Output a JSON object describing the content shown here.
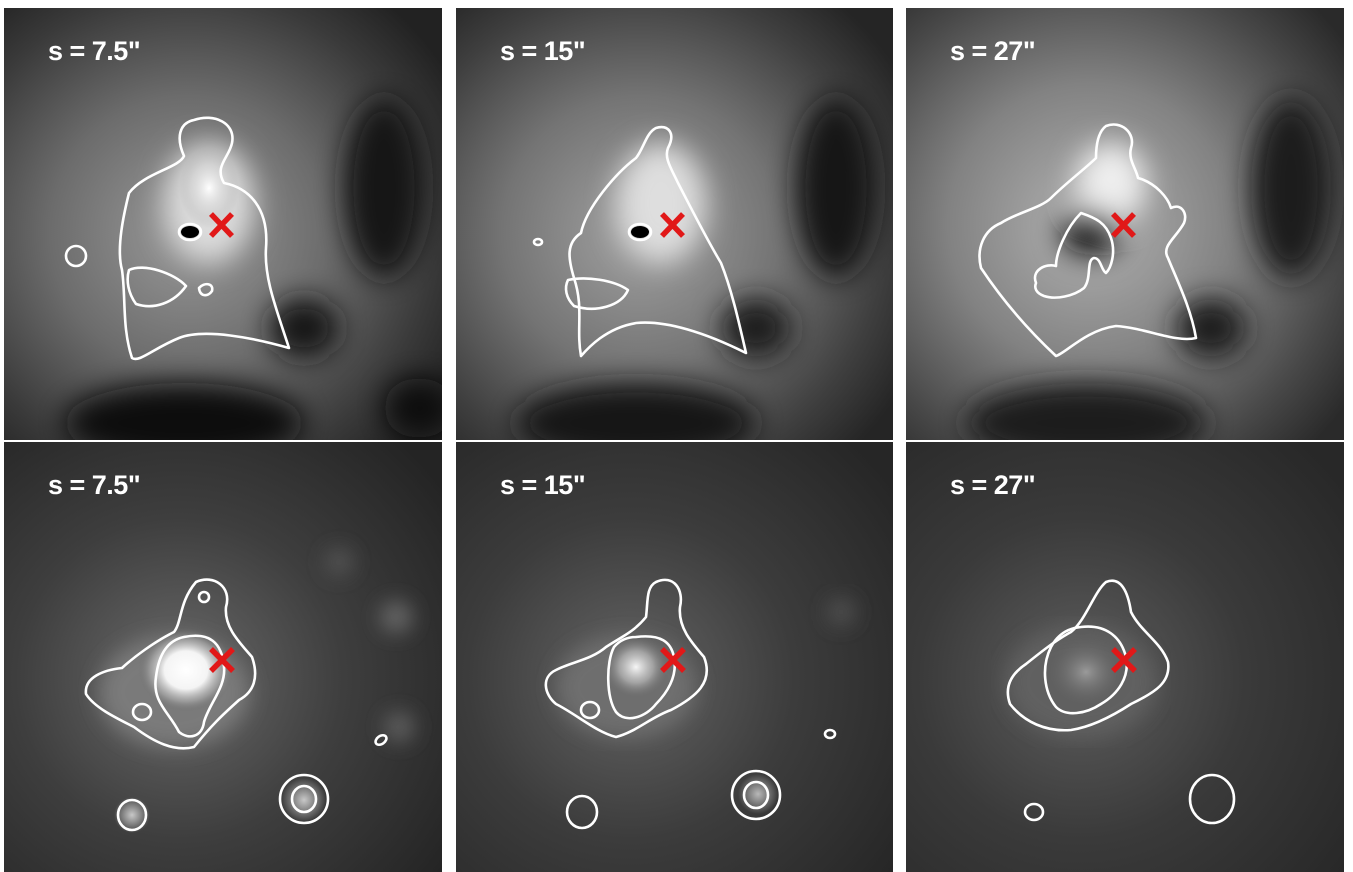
{
  "panels": [
    {
      "row": "top",
      "label": "s = 7.5\""
    },
    {
      "row": "top",
      "label": "s = 15\""
    },
    {
      "row": "top",
      "label": "s = 27\""
    },
    {
      "row": "bottom",
      "label": "s = 7.5\""
    },
    {
      "row": "bottom",
      "label": "s = 15\""
    },
    {
      "row": "bottom",
      "label": "s = 27\""
    }
  ],
  "colors": {
    "contour": "#ffffff",
    "marker": "#e11818",
    "background": "#ffffff"
  },
  "marker_icon": "red-x-cross-icon"
}
